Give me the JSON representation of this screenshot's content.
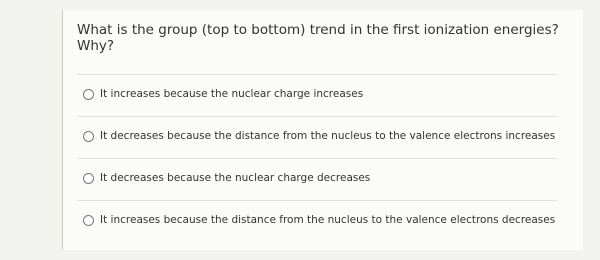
{
  "question": "What is the group (top to bottom) trend in the first ionization energies? Why?",
  "options": [
    "It increases because the nuclear charge increases",
    "It decreases because the distance from the nucleus to the valence electrons increases",
    "It decreases because the nuclear charge decreases",
    "It increases because the distance from the nucleus to the valence electrons decreases"
  ]
}
